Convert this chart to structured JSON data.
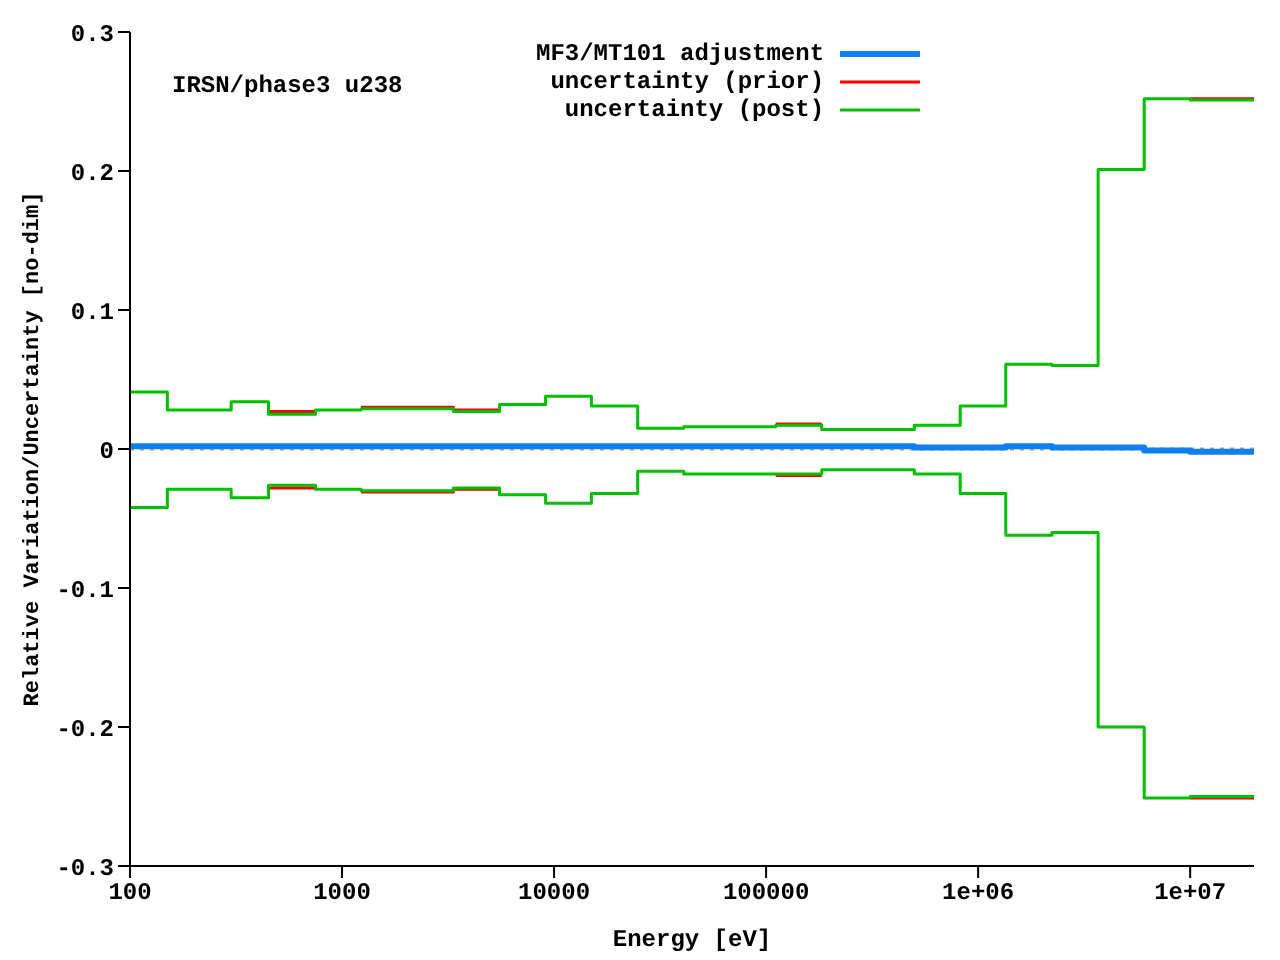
{
  "chart_data": {
    "type": "step",
    "xlabel": "Energy [eV]",
    "ylabel": "Relative Variation/Uncertainty [no-dim]",
    "annotations": [
      "IRSN/phase3 u238"
    ],
    "log": "x",
    "xlim": [
      100,
      20000000
    ],
    "xticks": [
      100,
      1000,
      10000,
      100000,
      {
        "value": 1000000,
        "label": "1e+06"
      },
      {
        "value": 10000000,
        "label": "1e+07"
      }
    ],
    "ylim": [
      -0.3,
      0.3
    ],
    "yticks": [
      -0.3,
      -0.2,
      -0.1,
      0,
      0.1,
      0.2,
      0.3
    ],
    "legend": "top",
    "ref_lines": [
      {
        "axis": "y",
        "value": 0,
        "color": "#a0a0a0",
        "line_style": "dotted"
      }
    ],
    "x": [
      100,
      150,
      300,
      450,
      750,
      1230,
      3350,
      5530,
      9120,
      15000,
      24800,
      40900,
      111000,
      183000,
      500000,
      823000,
      1350000,
      2230000,
      3680000,
      6070000,
      10000000,
      20000000
    ],
    "series": [
      {
        "name": "MF3/MT101 adjustment",
        "color": "#1080f0",
        "values": [
          0.002,
          0.002,
          0.002,
          0.002,
          0.002,
          0.002,
          0.002,
          0.002,
          0.002,
          0.002,
          0.002,
          0.002,
          0.002,
          0.002,
          0.001,
          0.001,
          0.002,
          0.001,
          0.001,
          -0.001,
          -0.002,
          -0.002
        ]
      },
      {
        "name": "uncertainty (prior)",
        "color": "#ff0000",
        "values": [
          null,
          null,
          null,
          0.027,
          null,
          0.03,
          0.028,
          null,
          null,
          null,
          null,
          null,
          0.018,
          null,
          null,
          null,
          null,
          null,
          null,
          null,
          0.252,
          0.252
        ]
      },
      {
        "color": "#ff0000",
        "values": [
          null,
          null,
          null,
          -0.028,
          null,
          -0.031,
          -0.029,
          null,
          null,
          null,
          null,
          null,
          -0.019,
          null,
          null,
          null,
          null,
          null,
          null,
          null,
          -0.251,
          -0.251
        ]
      },
      {
        "name": "uncertainty (post)",
        "color": "#00c000",
        "values": [
          0.041,
          0.028,
          0.034,
          0.025,
          0.028,
          0.029,
          0.027,
          0.032,
          0.038,
          0.031,
          0.015,
          0.016,
          0.017,
          0.014,
          0.017,
          0.031,
          0.061,
          0.06,
          0.201,
          0.252,
          0.251,
          0.251
        ]
      },
      {
        "color": "#00c000",
        "values": [
          -0.042,
          -0.029,
          -0.035,
          -0.026,
          -0.029,
          -0.03,
          -0.028,
          -0.033,
          -0.039,
          -0.032,
          -0.016,
          -0.018,
          -0.018,
          -0.015,
          -0.018,
          -0.032,
          -0.062,
          -0.06,
          -0.2,
          -0.251,
          -0.25,
          -0.25
        ]
      }
    ]
  }
}
